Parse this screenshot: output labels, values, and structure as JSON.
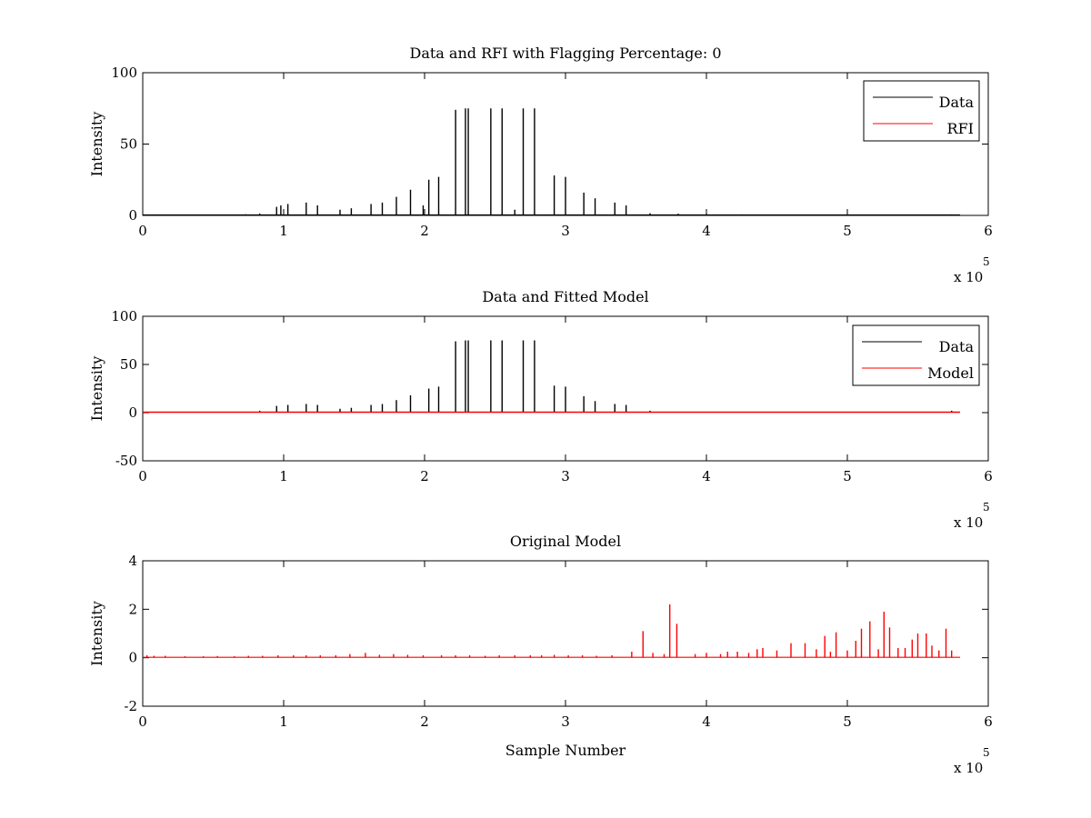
{
  "chart_data": [
    {
      "type": "line",
      "title": "Data and RFI with Flagging Percentage: 0",
      "xlabel": "",
      "ylabel": "Intensity",
      "xlim": [
        0,
        600000
      ],
      "ylim": [
        0,
        100
      ],
      "xticks": [
        0,
        100000,
        200000,
        300000,
        400000,
        500000,
        600000
      ],
      "xtick_labels": [
        "0",
        "1",
        "2",
        "3",
        "4",
        "5",
        "6"
      ],
      "yticks": [
        0,
        50,
        100
      ],
      "ytick_labels": [
        "0",
        "50",
        "100"
      ],
      "x_multiplier": "x 10",
      "x_multiplier_exp": "5",
      "grid": false,
      "legend": "top-right",
      "baseline_end": 580000,
      "series": [
        {
          "name": "Data",
          "color": "#000000",
          "x": [
            12000,
            30000,
            40000,
            48000,
            73000,
            83000,
            95000,
            98000,
            103000,
            116000,
            124000,
            140000,
            148000,
            162000,
            170000,
            180000,
            190000,
            199000,
            203000,
            210000,
            222000,
            229000,
            231000,
            247000,
            255000,
            264000,
            270000,
            278000,
            292000,
            300000,
            313000,
            321000,
            335000,
            343000,
            360000,
            380000,
            400000,
            425000,
            450000,
            475000,
            500000,
            525000,
            550000,
            574000
          ],
          "values": [
            0.3,
            0.4,
            0.3,
            0.5,
            0.8,
            1.3,
            6,
            7,
            8,
            9,
            7,
            4,
            5,
            8,
            9,
            13,
            18,
            7,
            25,
            27,
            74,
            75,
            75,
            75,
            75,
            4,
            75,
            75,
            28,
            27,
            16,
            12,
            9,
            7,
            1.5,
            1.2,
            1,
            0.7,
            0.6,
            0.5,
            0.5,
            0.4,
            0.4,
            0.7
          ]
        },
        {
          "name": "RFI",
          "color": "#ff0000",
          "x": [],
          "values": []
        }
      ]
    },
    {
      "type": "line",
      "title": "Data and Fitted Model",
      "xlabel": "",
      "ylabel": "Intensity",
      "xlim": [
        0,
        600000
      ],
      "ylim": [
        -50,
        100
      ],
      "xticks": [
        0,
        100000,
        200000,
        300000,
        400000,
        500000,
        600000
      ],
      "xtick_labels": [
        "0",
        "1",
        "2",
        "3",
        "4",
        "5",
        "6"
      ],
      "yticks": [
        -50,
        0,
        50,
        100
      ],
      "ytick_labels": [
        "-50",
        "0",
        "50",
        "100"
      ],
      "x_multiplier": "x 10",
      "x_multiplier_exp": "5",
      "grid": false,
      "legend": "top-right",
      "baseline_end": 580000,
      "series": [
        {
          "name": "Data",
          "color": "#000000",
          "x": [
            83000,
            95000,
            103000,
            116000,
            124000,
            140000,
            148000,
            162000,
            170000,
            180000,
            190000,
            203000,
            210000,
            222000,
            229000,
            231000,
            247000,
            255000,
            270000,
            278000,
            292000,
            300000,
            313000,
            321000,
            335000,
            343000,
            360000,
            574000
          ],
          "values": [
            2,
            7,
            8,
            9,
            8,
            4,
            5,
            8,
            9,
            13,
            18,
            25,
            27,
            74,
            75,
            75,
            75,
            75,
            75,
            75,
            28,
            27,
            17,
            12,
            9,
            8,
            2,
            2
          ]
        },
        {
          "name": "Model",
          "color": "#ff0000",
          "x": [
            0,
            580000
          ],
          "values": [
            0.5,
            0.5
          ]
        }
      ]
    },
    {
      "type": "line",
      "title": "Original Model",
      "xlabel": "Sample Number",
      "ylabel": "Intensity",
      "xlim": [
        0,
        600000
      ],
      "ylim": [
        -2,
        4
      ],
      "xticks": [
        0,
        100000,
        200000,
        300000,
        400000,
        500000,
        600000
      ],
      "xtick_labels": [
        "0",
        "1",
        "2",
        "3",
        "4",
        "5",
        "6"
      ],
      "yticks": [
        -2,
        0,
        2,
        4
      ],
      "ytick_labels": [
        "-2",
        "0",
        "2",
        "4"
      ],
      "x_multiplier": "x 10",
      "x_multiplier_exp": "5",
      "grid": false,
      "legend": "none",
      "baseline_end": 580000,
      "series": [
        {
          "name": "",
          "color": "#ff0000",
          "x": [
            3000,
            8000,
            16000,
            30000,
            43000,
            53000,
            65000,
            75000,
            85000,
            96000,
            107000,
            116000,
            126000,
            137000,
            147000,
            158000,
            168000,
            178000,
            188000,
            199000,
            212000,
            222000,
            232000,
            243000,
            253000,
            264000,
            275000,
            283000,
            292000,
            302000,
            312000,
            322000,
            333000,
            347000,
            355000,
            362000,
            370000,
            374000,
            379000,
            392000,
            400000,
            410000,
            415000,
            422000,
            430000,
            436000,
            440000,
            450000,
            460000,
            470000,
            478000,
            484000,
            488000,
            492000,
            500000,
            506000,
            510000,
            516000,
            522000,
            526000,
            530000,
            536000,
            541000,
            546000,
            550000,
            556000,
            560000,
            565000,
            570000,
            574000
          ],
          "values": [
            0.1,
            0.08,
            0.08,
            0.06,
            0.06,
            0.07,
            0.06,
            0.08,
            0.08,
            0.1,
            0.1,
            0.1,
            0.1,
            0.1,
            0.15,
            0.2,
            0.12,
            0.15,
            0.12,
            0.1,
            0.1,
            0.1,
            0.1,
            0.08,
            0.1,
            0.1,
            0.1,
            0.1,
            0.12,
            0.1,
            0.1,
            0.08,
            0.1,
            0.25,
            1.1,
            0.2,
            0.15,
            2.2,
            1.4,
            0.15,
            0.2,
            0.15,
            0.25,
            0.25,
            0.2,
            0.35,
            0.4,
            0.3,
            0.6,
            0.6,
            0.35,
            0.9,
            0.25,
            1.05,
            0.3,
            0.7,
            1.2,
            1.5,
            0.35,
            1.9,
            1.25,
            0.4,
            0.4,
            0.75,
            1.0,
            1.0,
            0.5,
            0.3,
            1.2,
            0.3
          ]
        }
      ]
    }
  ]
}
